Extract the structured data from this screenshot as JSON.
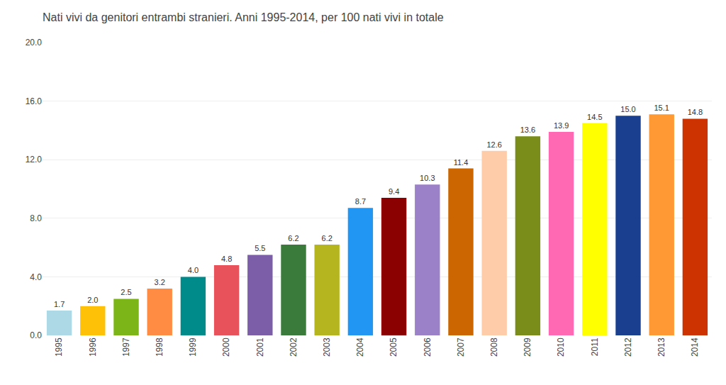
{
  "chart_data": {
    "type": "bar",
    "title": "Nati vivi da genitori entrambi stranieri. Anni 1995-2014, per 100 nati vivi in totale",
    "categories": [
      "1995",
      "1996",
      "1997",
      "1998",
      "1999",
      "2000",
      "2001",
      "2002",
      "2003",
      "2004",
      "2005",
      "2006",
      "2007",
      "2008",
      "2009",
      "2010",
      "2011",
      "2012",
      "2013",
      "2014"
    ],
    "values": [
      1.7,
      2.0,
      2.5,
      3.2,
      4.0,
      4.8,
      5.5,
      6.2,
      6.2,
      8.7,
      9.4,
      10.3,
      11.4,
      12.6,
      13.6,
      13.9,
      14.5,
      15.0,
      15.1,
      14.8
    ],
    "value_labels": [
      "1.7",
      "2.0",
      "2.5",
      "3.2",
      "4.0",
      "4.8",
      "5.5",
      "6.2",
      "6.2",
      "8.7",
      "9.4",
      "10.3",
      "11.4",
      "12.6",
      "13.6",
      "13.9",
      "14.5",
      "15.0",
      "15.1",
      "14.8"
    ],
    "colors": [
      "#ADD8E6",
      "#FFC107",
      "#7CB518",
      "#FF8C42",
      "#008B8B",
      "#E8525A",
      "#7B5EA7",
      "#3A7A3A",
      "#B5B520",
      "#2196F3",
      "#8B0000",
      "#9B82C8",
      "#CC6600",
      "#FFCCAA",
      "#7A8C1A",
      "#FF69B4",
      "#FFFF00",
      "#1A3F8F",
      "#FF9933",
      "#CC3300"
    ],
    "ylim": [
      0,
      20.0
    ],
    "yticks": [
      {
        "value": 0.0,
        "label": "0.0"
      },
      {
        "value": 4.0,
        "label": "4.0"
      },
      {
        "value": 8.0,
        "label": "8.0"
      },
      {
        "value": 12.0,
        "label": "12.0"
      },
      {
        "value": 16.0,
        "label": "16.0"
      },
      {
        "value": 20.0,
        "label": "20.0"
      }
    ],
    "grid": true,
    "data_labels": true
  }
}
